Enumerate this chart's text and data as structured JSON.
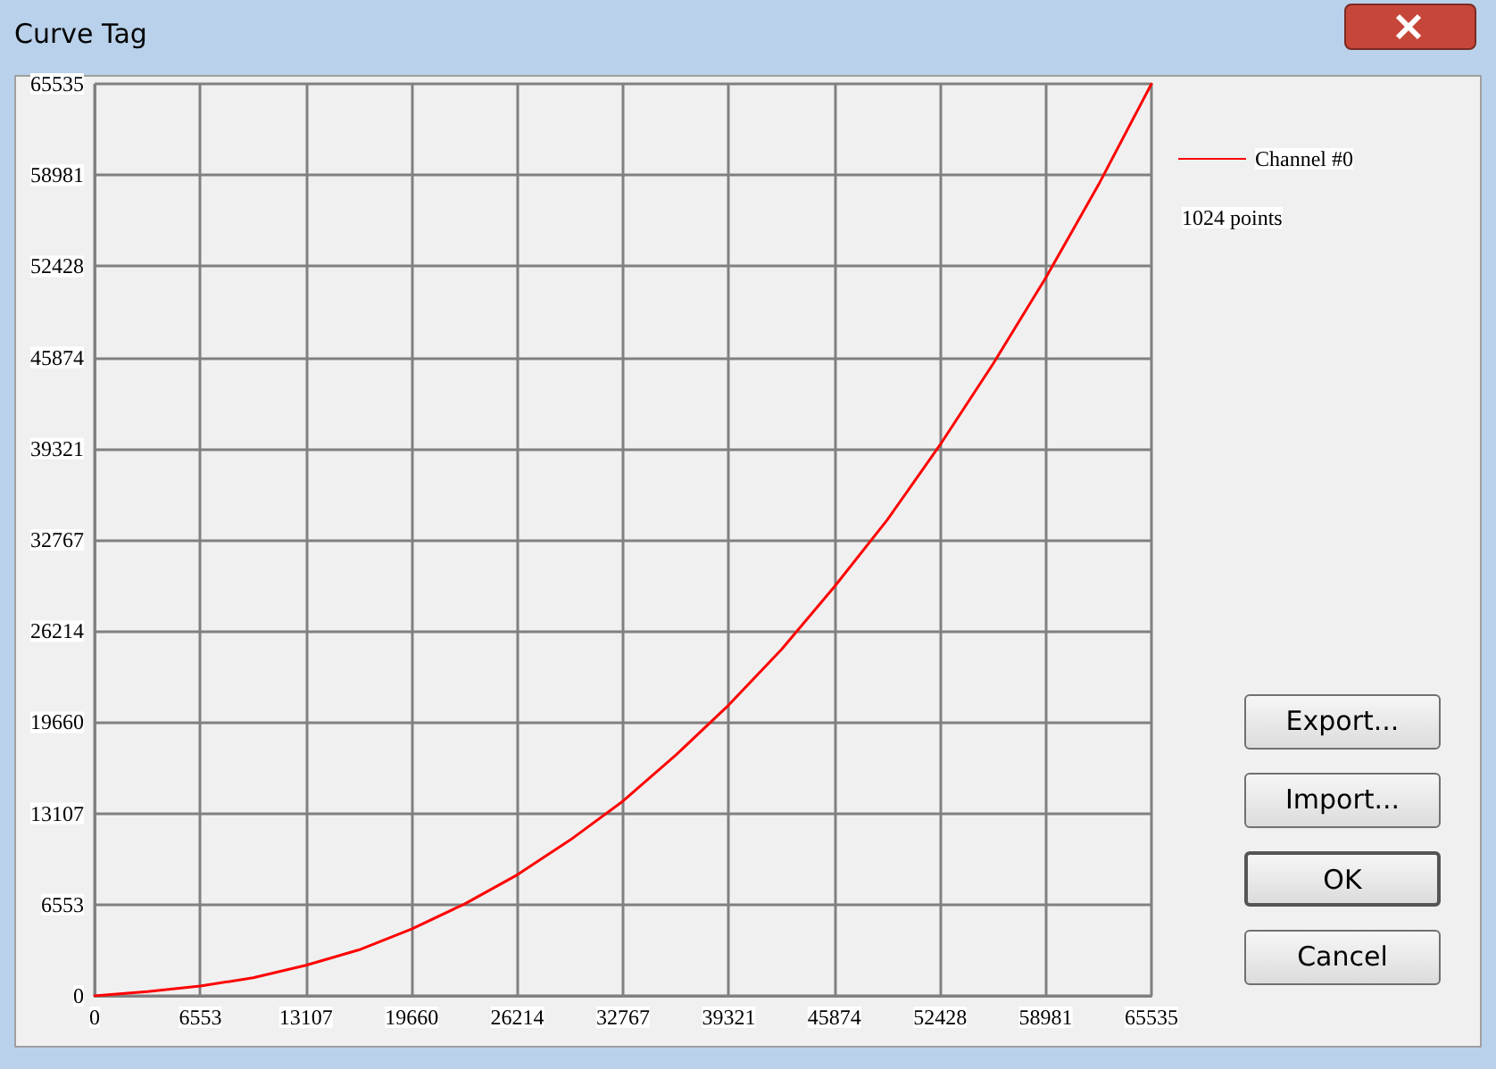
{
  "chart_data": {
    "type": "line",
    "title": "Curve Tag",
    "x": [
      0,
      3277,
      6554,
      9830,
      13107,
      16384,
      19661,
      22937,
      26214,
      29491,
      32768,
      36044,
      39321,
      42598,
      45875,
      49151,
      52428,
      55705,
      58982,
      62258,
      65535
    ],
    "series": [
      {
        "name": "Channel #0",
        "color": "#ff0000",
        "values": [
          0,
          300,
          700,
          1300,
          2200,
          3300,
          4800,
          6600,
          8700,
          11200,
          14000,
          17300,
          20900,
          24900,
          29400,
          34200,
          39600,
          45400,
          51600,
          58300,
          65535
        ]
      }
    ],
    "xlim": [
      0,
      65535
    ],
    "ylim": [
      0,
      65535
    ],
    "xticks": [
      0,
      6553,
      13107,
      19660,
      26214,
      32767,
      39321,
      45874,
      52428,
      58981,
      65535
    ],
    "yticks": [
      0,
      6553,
      13107,
      19660,
      26214,
      32767,
      39321,
      45874,
      52428,
      58981,
      65535
    ],
    "grid": true,
    "legend": "top right",
    "marker": "none",
    "line_style": "solid",
    "annotations": [
      "1024 points",
      "Export...",
      "Import...",
      "OK",
      "Cancel"
    ]
  }
}
